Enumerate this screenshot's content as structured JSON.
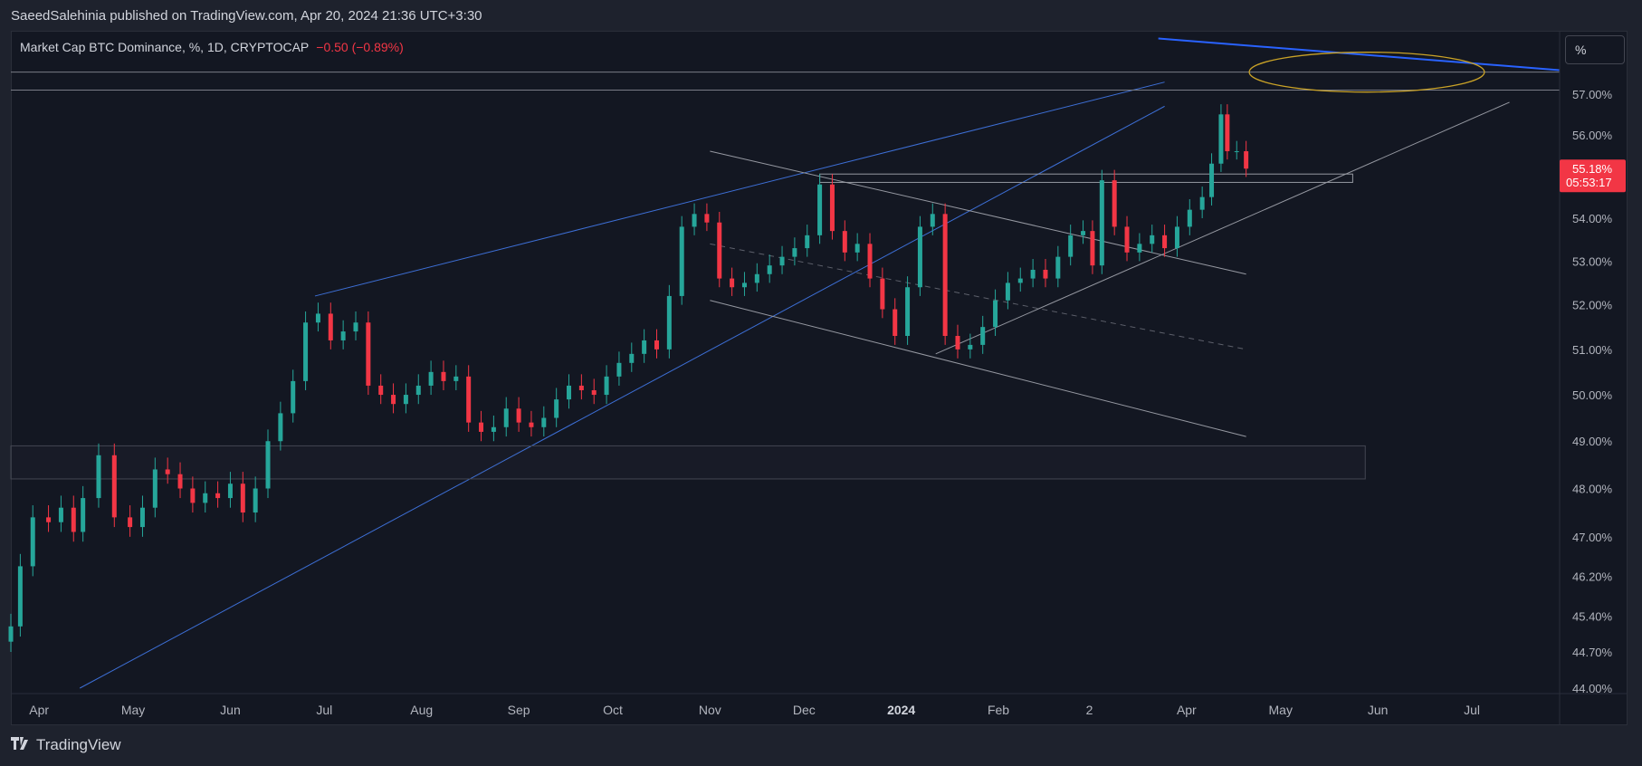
{
  "header": {
    "publish_line": "SaeedSalehinia published on TradingView.com, Apr 20, 2024 21:36 UTC+3:30"
  },
  "legend": {
    "symbol_line": "Market Cap BTC Dominance, %, 1D, CRYPTOCAP",
    "change": "−0.50 (−0.89%)"
  },
  "scale_button": {
    "label": "%"
  },
  "price_badge": {
    "price": "55.18%",
    "countdown": "05:53:17"
  },
  "footer": {
    "brand": "TradingView"
  },
  "colors": {
    "up": "#26a69a",
    "down": "#f23645",
    "background": "#131722",
    "trendline_blue": "#3d6fd6",
    "trendline_gray": "#9598a1",
    "ellipse": "#c9a227"
  },
  "icons": {
    "brand_logo": "tradingview-logo-icon"
  },
  "chart_data": {
    "type": "candlestick",
    "title": "Market Cap BTC Dominance, %, 1D, CRYPTOCAP",
    "ylabel": "%",
    "ylim": [
      44.0,
      58.4
    ],
    "y_scale": "log",
    "grid": false,
    "y_ticks": [
      "57.00%",
      "56.00%",
      "54.00%",
      "53.00%",
      "52.00%",
      "51.00%",
      "50.00%",
      "49.00%",
      "48.00%",
      "47.00%",
      "46.20%",
      "45.40%",
      "44.70%",
      "44.00%"
    ],
    "x_ticks": [
      "Apr",
      "May",
      "Jun",
      "Jul",
      "Aug",
      "Sep",
      "Oct",
      "Nov",
      "Dec",
      "2024",
      "Feb",
      "2",
      "Apr",
      "May",
      "Jun",
      "Jul"
    ],
    "x_range": [
      "2023-03-23",
      "2024-07-29"
    ],
    "last_price": 55.18,
    "series": [
      {
        "name": "BTC Dominance",
        "ohlc_daily_close": [
          [
            "2023-03-23",
            45.2
          ],
          [
            "2023-03-26",
            46.4
          ],
          [
            "2023-03-30",
            47.4
          ],
          [
            "2023-04-04",
            47.3
          ],
          [
            "2023-04-08",
            47.6
          ],
          [
            "2023-04-12",
            47.1
          ],
          [
            "2023-04-15",
            47.8
          ],
          [
            "2023-04-20",
            48.7
          ],
          [
            "2023-04-25",
            47.4
          ],
          [
            "2023-04-30",
            47.2
          ],
          [
            "2023-05-04",
            47.6
          ],
          [
            "2023-05-08",
            48.4
          ],
          [
            "2023-05-12",
            48.3
          ],
          [
            "2023-05-16",
            48.0
          ],
          [
            "2023-05-20",
            47.7
          ],
          [
            "2023-05-24",
            47.9
          ],
          [
            "2023-05-28",
            47.8
          ],
          [
            "2023-06-01",
            48.1
          ],
          [
            "2023-06-05",
            47.5
          ],
          [
            "2023-06-09",
            48.0
          ],
          [
            "2023-06-13",
            49.0
          ],
          [
            "2023-06-17",
            49.6
          ],
          [
            "2023-06-21",
            50.3
          ],
          [
            "2023-06-25",
            51.6
          ],
          [
            "2023-06-29",
            51.8
          ],
          [
            "2023-07-03",
            51.2
          ],
          [
            "2023-07-07",
            51.4
          ],
          [
            "2023-07-11",
            51.6
          ],
          [
            "2023-07-15",
            50.2
          ],
          [
            "2023-07-19",
            50.0
          ],
          [
            "2023-07-23",
            49.8
          ],
          [
            "2023-07-27",
            50.0
          ],
          [
            "2023-07-31",
            50.2
          ],
          [
            "2023-08-04",
            50.5
          ],
          [
            "2023-08-08",
            50.3
          ],
          [
            "2023-08-12",
            50.4
          ],
          [
            "2023-08-16",
            49.4
          ],
          [
            "2023-08-20",
            49.2
          ],
          [
            "2023-08-24",
            49.3
          ],
          [
            "2023-08-28",
            49.7
          ],
          [
            "2023-09-01",
            49.4
          ],
          [
            "2023-09-05",
            49.3
          ],
          [
            "2023-09-09",
            49.5
          ],
          [
            "2023-09-13",
            49.9
          ],
          [
            "2023-09-17",
            50.2
          ],
          [
            "2023-09-21",
            50.1
          ],
          [
            "2023-09-25",
            50.0
          ],
          [
            "2023-09-29",
            50.4
          ],
          [
            "2023-10-03",
            50.7
          ],
          [
            "2023-10-07",
            50.9
          ],
          [
            "2023-10-11",
            51.2
          ],
          [
            "2023-10-15",
            51.0
          ],
          [
            "2023-10-19",
            52.2
          ],
          [
            "2023-10-23",
            53.8
          ],
          [
            "2023-10-27",
            54.1
          ],
          [
            "2023-10-31",
            53.9
          ],
          [
            "2023-11-04",
            52.6
          ],
          [
            "2023-11-08",
            52.4
          ],
          [
            "2023-11-12",
            52.5
          ],
          [
            "2023-11-16",
            52.7
          ],
          [
            "2023-11-20",
            52.9
          ],
          [
            "2023-11-24",
            53.1
          ],
          [
            "2023-11-28",
            53.3
          ],
          [
            "2023-12-02",
            53.6
          ],
          [
            "2023-12-06",
            54.8
          ],
          [
            "2023-12-10",
            53.7
          ],
          [
            "2023-12-14",
            53.2
          ],
          [
            "2023-12-18",
            53.4
          ],
          [
            "2023-12-22",
            52.6
          ],
          [
            "2023-12-26",
            51.9
          ],
          [
            "2023-12-30",
            51.3
          ],
          [
            "2024-01-03",
            52.4
          ],
          [
            "2024-01-07",
            53.8
          ],
          [
            "2024-01-11",
            54.1
          ],
          [
            "2024-01-15",
            51.3
          ],
          [
            "2024-01-19",
            51.0
          ],
          [
            "2024-01-23",
            51.1
          ],
          [
            "2024-01-27",
            51.5
          ],
          [
            "2024-01-31",
            52.1
          ],
          [
            "2024-02-04",
            52.5
          ],
          [
            "2024-02-08",
            52.6
          ],
          [
            "2024-02-12",
            52.8
          ],
          [
            "2024-02-16",
            52.6
          ],
          [
            "2024-02-20",
            53.1
          ],
          [
            "2024-02-24",
            53.6
          ],
          [
            "2024-02-28",
            53.7
          ],
          [
            "2024-03-02",
            52.9
          ],
          [
            "2024-03-05",
            54.9
          ],
          [
            "2024-03-09",
            53.8
          ],
          [
            "2024-03-13",
            53.2
          ],
          [
            "2024-03-17",
            53.4
          ],
          [
            "2024-03-21",
            53.6
          ],
          [
            "2024-03-25",
            53.3
          ],
          [
            "2024-03-29",
            53.8
          ],
          [
            "2024-04-02",
            54.2
          ],
          [
            "2024-04-06",
            54.5
          ],
          [
            "2024-04-09",
            55.3
          ],
          [
            "2024-04-12",
            56.5
          ],
          [
            "2024-04-14",
            55.6
          ],
          [
            "2024-04-17",
            55.6
          ],
          [
            "2024-04-20",
            55.18
          ]
        ]
      }
    ]
  }
}
